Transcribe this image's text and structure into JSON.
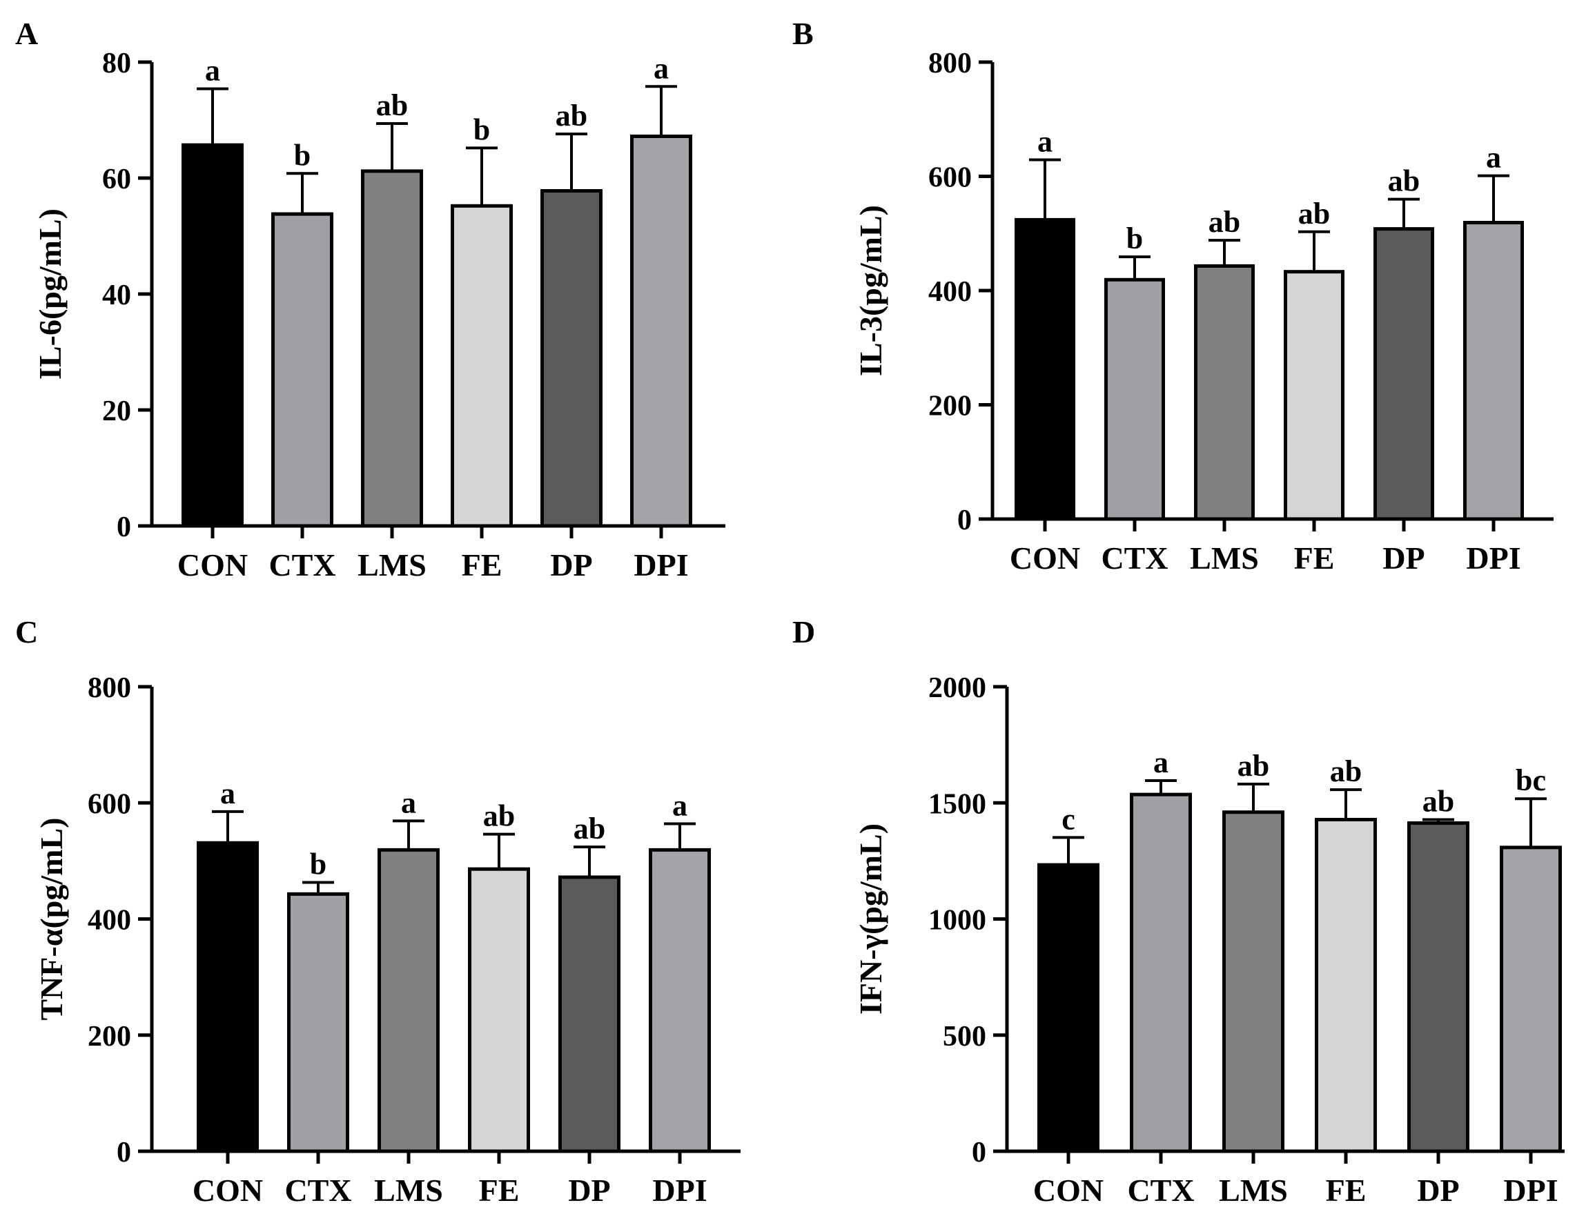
{
  "figure": {
    "panels": [
      {
        "letter": "A"
      },
      {
        "letter": "B"
      },
      {
        "letter": "C"
      },
      {
        "letter": "D"
      }
    ]
  },
  "colors": {
    "CON": "#000000",
    "CTX": "#a0a0a4",
    "LMS": "#808080",
    "FE": "#d5d5d5",
    "DP": "#5b5b5b",
    "DPI": "#a4a4a8",
    "axis": "#000000",
    "background": "#ffffff"
  },
  "chart_data": [
    {
      "type": "bar",
      "panel": "A",
      "title": "",
      "xlabel": "",
      "ylabel": "IL-6(pg/mL)",
      "categories": [
        "CON",
        "CTX",
        "LMS",
        "FE",
        "DP",
        "DPI"
      ],
      "values": [
        65.7,
        53.8,
        61.2,
        55.2,
        57.8,
        67.2
      ],
      "errors": [
        9.7,
        7.0,
        8.2,
        10.0,
        9.8,
        8.6
      ],
      "significance": [
        "a",
        "b",
        "ab",
        "b",
        "ab",
        "a"
      ],
      "ylim": [
        0,
        80
      ],
      "yticks": [
        0,
        20,
        40,
        60,
        80
      ],
      "grid": false
    },
    {
      "type": "bar",
      "panel": "B",
      "title": "",
      "xlabel": "",
      "ylabel": "IL-3(pg/mL)",
      "categories": [
        "CON",
        "CTX",
        "LMS",
        "FE",
        "DP",
        "DPI"
      ],
      "values": [
        524,
        419,
        443,
        433,
        508,
        519
      ],
      "errors": [
        105,
        40,
        45,
        70,
        52,
        82
      ],
      "significance": [
        "a",
        "b",
        "ab",
        "ab",
        "ab",
        "a"
      ],
      "ylim": [
        0,
        800
      ],
      "yticks": [
        0,
        200,
        400,
        600,
        800
      ],
      "grid": false
    },
    {
      "type": "bar",
      "panel": "C",
      "title": "",
      "xlabel": "",
      "ylabel": "TNF-α(pg/mL)",
      "categories": [
        "CON",
        "CTX",
        "LMS",
        "FE",
        "DP",
        "DPI"
      ],
      "values": [
        531,
        443,
        519,
        486,
        472,
        519
      ],
      "errors": [
        54,
        20,
        50,
        60,
        52,
        45
      ],
      "significance": [
        "a",
        "b",
        "a",
        "ab",
        "ab",
        "a"
      ],
      "ylim": [
        0,
        800
      ],
      "yticks": [
        0,
        200,
        400,
        600,
        800
      ],
      "grid": false
    },
    {
      "type": "bar",
      "panel": "D",
      "title": "",
      "xlabel": "",
      "ylabel": "IFN-γ(pg/mL)",
      "categories": [
        "CON",
        "CTX",
        "LMS",
        "FE",
        "DP",
        "DPI"
      ],
      "values": [
        1233,
        1536,
        1460,
        1428,
        1413,
        1308
      ],
      "errors": [
        118,
        60,
        121,
        129,
        15,
        210
      ],
      "significance": [
        "c",
        "a",
        "ab",
        "ab",
        "ab",
        "bc"
      ],
      "ylim": [
        0,
        2000
      ],
      "yticks": [
        0,
        500,
        1000,
        1500,
        2000
      ],
      "grid": false
    }
  ]
}
